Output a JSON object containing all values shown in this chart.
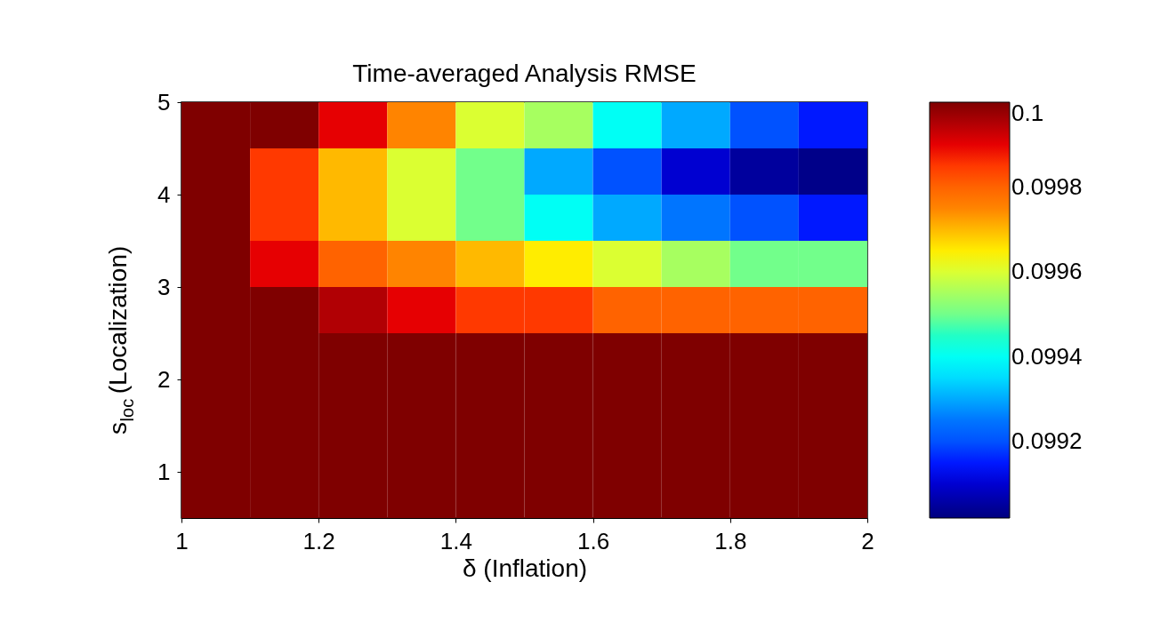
{
  "chart_data": {
    "type": "heatmap",
    "title": "Time-averaged Analysis RMSE",
    "xlabel": "δ (Inflation)",
    "ylabel": "s$_{loc}$ (Localization)",
    "x": [
      1.05,
      1.15,
      1.25,
      1.35,
      1.45,
      1.55,
      1.65,
      1.75,
      1.85,
      1.95
    ],
    "y": [
      4.75,
      4.25,
      3.75,
      3.25,
      2.75,
      2.25,
      1.75,
      1.25,
      0.75
    ],
    "cells": [
      [
        0.1,
        0.1,
        0.0999,
        0.09975,
        0.0996,
        0.09955,
        0.0994,
        0.0993,
        0.0992,
        0.09915
      ],
      [
        0.1,
        0.09985,
        0.0997,
        0.0996,
        0.0995,
        0.0993,
        0.0992,
        0.0991,
        0.09905,
        0.09903
      ],
      [
        0.1,
        0.09985,
        0.0997,
        0.0996,
        0.0995,
        0.0994,
        0.0993,
        0.09925,
        0.0992,
        0.09915
      ],
      [
        0.1,
        0.0999,
        0.0998,
        0.09975,
        0.0997,
        0.09965,
        0.0996,
        0.09955,
        0.0995,
        0.0995
      ],
      [
        0.1,
        0.1,
        0.09995,
        0.0999,
        0.09985,
        0.09985,
        0.0998,
        0.0998,
        0.0998,
        0.0998
      ],
      [
        0.1,
        0.1,
        0.1,
        0.1,
        0.1,
        0.1,
        0.1,
        0.1,
        0.1,
        0.1
      ],
      [
        0.1,
        0.1,
        0.1,
        0.1,
        0.1,
        0.1,
        0.1,
        0.1,
        0.1,
        0.1
      ],
      [
        0.1,
        0.1,
        0.1,
        0.1,
        0.1,
        0.1,
        0.1,
        0.1,
        0.1,
        0.1
      ],
      [
        0.1,
        0.1,
        0.1,
        0.1,
        0.1,
        0.1,
        0.1,
        0.1,
        0.1,
        0.1
      ]
    ],
    "xlim": [
      1,
      2
    ],
    "xticks": [
      1,
      1.2,
      1.4,
      1.6,
      1.8,
      2
    ],
    "ylim": [
      0.5,
      5
    ],
    "yticks": [
      1,
      2,
      3,
      4,
      5
    ],
    "clim": [
      0.09902,
      0.1
    ],
    "cticks": [
      0.0992,
      0.0994,
      0.0996,
      0.0998,
      0.1
    ],
    "grid": false
  }
}
